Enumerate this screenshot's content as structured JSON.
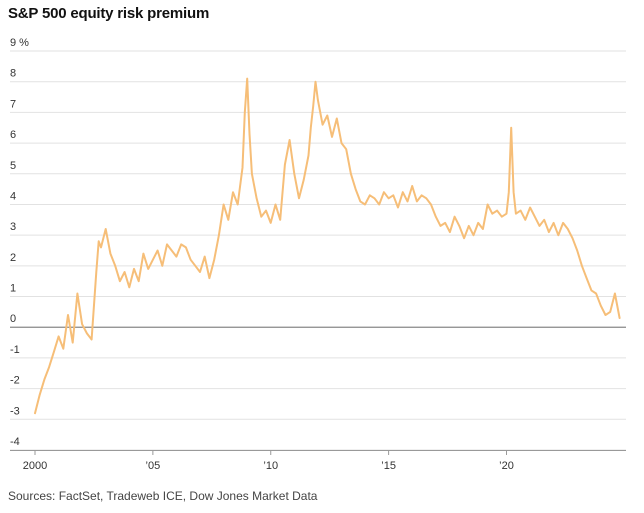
{
  "chart_data": {
    "type": "line",
    "title": "S&P 500 equity risk premium",
    "source": "Sources: FactSet, Tradeweb ICE, Dow Jones Market Data",
    "y_unit": "%",
    "ylim": [
      -4,
      9
    ],
    "y_ticks": [
      9,
      8,
      7,
      6,
      5,
      4,
      3,
      2,
      1,
      0,
      -1,
      -2,
      -3,
      -4
    ],
    "y_tick_labels": [
      "9",
      "8",
      "7",
      "6",
      "5",
      "4",
      "3",
      "2",
      "1",
      "0",
      "-1",
      "-2",
      "-3",
      "-4"
    ],
    "xlim": [
      2000,
      2024.9
    ],
    "x_ticks": [
      2000,
      2005,
      2010,
      2015,
      2020
    ],
    "x_tick_labels": [
      "2000",
      "’05",
      "’10",
      "’15",
      "’20"
    ],
    "grid": true,
    "colors": {
      "line": "#f6be78",
      "zero_line": "#888888",
      "grid": "#e2e2e2",
      "axis": "#999999"
    },
    "series": [
      {
        "name": "S&P 500 equity risk premium",
        "x": [
          2000.0,
          2000.2,
          2000.4,
          2000.6,
          2000.8,
          2001.0,
          2001.2,
          2001.4,
          2001.6,
          2001.8,
          2002.0,
          2002.2,
          2002.4,
          2002.6,
          2002.7,
          2002.8,
          2003.0,
          2003.2,
          2003.4,
          2003.6,
          2003.8,
          2004.0,
          2004.2,
          2004.4,
          2004.6,
          2004.8,
          2005.0,
          2005.2,
          2005.4,
          2005.6,
          2005.8,
          2006.0,
          2006.2,
          2006.4,
          2006.6,
          2006.8,
          2007.0,
          2007.2,
          2007.4,
          2007.6,
          2007.8,
          2008.0,
          2008.2,
          2008.4,
          2008.6,
          2008.8,
          2008.9,
          2009.0,
          2009.1,
          2009.2,
          2009.4,
          2009.6,
          2009.8,
          2010.0,
          2010.2,
          2010.4,
          2010.6,
          2010.8,
          2011.0,
          2011.2,
          2011.4,
          2011.6,
          2011.7,
          2011.8,
          2011.9,
          2012.0,
          2012.2,
          2012.4,
          2012.6,
          2012.8,
          2013.0,
          2013.2,
          2013.4,
          2013.6,
          2013.8,
          2014.0,
          2014.2,
          2014.4,
          2014.6,
          2014.8,
          2015.0,
          2015.2,
          2015.4,
          2015.6,
          2015.8,
          2016.0,
          2016.2,
          2016.4,
          2016.6,
          2016.8,
          2017.0,
          2017.2,
          2017.4,
          2017.6,
          2017.8,
          2018.0,
          2018.2,
          2018.4,
          2018.6,
          2018.8,
          2019.0,
          2019.2,
          2019.4,
          2019.6,
          2019.8,
          2020.0,
          2020.1,
          2020.2,
          2020.3,
          2020.4,
          2020.6,
          2020.8,
          2021.0,
          2021.2,
          2021.4,
          2021.6,
          2021.8,
          2022.0,
          2022.2,
          2022.4,
          2022.6,
          2022.8,
          2023.0,
          2023.2,
          2023.4,
          2023.6,
          2023.8,
          2024.0,
          2024.2,
          2024.4,
          2024.6,
          2024.8
        ],
        "y": [
          -2.8,
          -2.2,
          -1.7,
          -1.3,
          -0.8,
          -0.3,
          -0.7,
          0.4,
          -0.5,
          1.1,
          0.1,
          -0.2,
          -0.4,
          1.8,
          2.8,
          2.6,
          3.2,
          2.4,
          2.0,
          1.5,
          1.8,
          1.3,
          1.9,
          1.5,
          2.4,
          1.9,
          2.2,
          2.5,
          2.0,
          2.7,
          2.5,
          2.3,
          2.7,
          2.6,
          2.2,
          2.0,
          1.8,
          2.3,
          1.6,
          2.2,
          3.0,
          4.0,
          3.5,
          4.4,
          4.0,
          5.2,
          7.0,
          8.1,
          6.3,
          5.0,
          4.2,
          3.6,
          3.8,
          3.4,
          4.0,
          3.5,
          5.3,
          6.1,
          5.0,
          4.2,
          4.8,
          5.6,
          6.5,
          7.2,
          8.0,
          7.4,
          6.6,
          6.9,
          6.2,
          6.8,
          6.0,
          5.8,
          5.0,
          4.5,
          4.1,
          4.0,
          4.3,
          4.2,
          4.0,
          4.4,
          4.2,
          4.3,
          3.9,
          4.4,
          4.1,
          4.6,
          4.1,
          4.3,
          4.2,
          4.0,
          3.6,
          3.3,
          3.4,
          3.1,
          3.6,
          3.3,
          2.9,
          3.3,
          3.0,
          3.4,
          3.2,
          4.0,
          3.7,
          3.8,
          3.6,
          3.7,
          4.4,
          6.5,
          4.4,
          3.7,
          3.8,
          3.5,
          3.9,
          3.6,
          3.3,
          3.5,
          3.1,
          3.4,
          3.0,
          3.4,
          3.2,
          2.9,
          2.5,
          2.0,
          1.6,
          1.2,
          1.1,
          0.7,
          0.4,
          0.5,
          1.1,
          0.3
        ]
      }
    ]
  }
}
